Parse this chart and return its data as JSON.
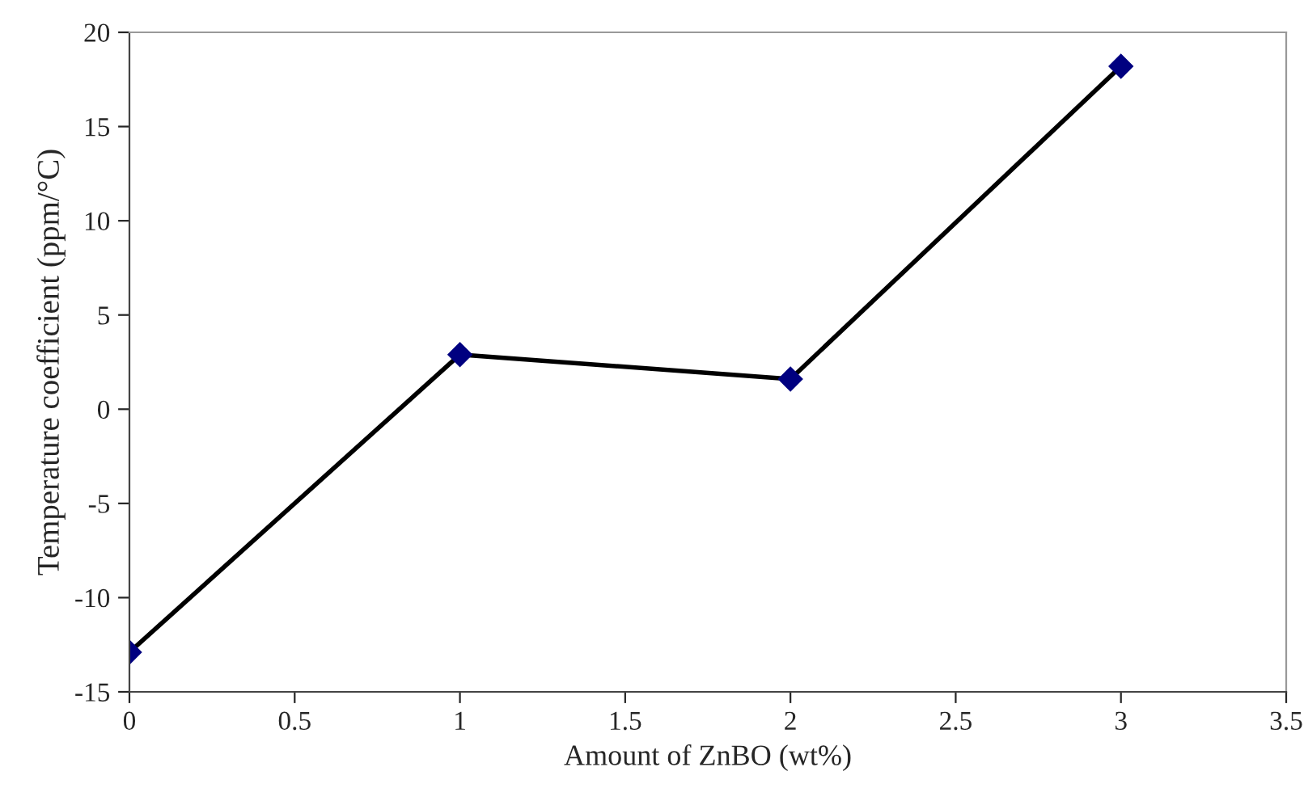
{
  "chart_data": {
    "type": "line",
    "xlabel": "Amount of ZnBO (wt%)",
    "ylabel": "Temperature coefficient (ppm/°C)",
    "x": [
      0,
      1,
      2,
      3
    ],
    "series": [
      {
        "color": "#000080",
        "values": [
          -12.9,
          2.9,
          1.6,
          18.2
        ]
      }
    ],
    "xlim": [
      0,
      3.5
    ],
    "xticks": [
      0,
      0.5,
      1,
      1.5,
      2,
      2.5,
      3,
      3.5
    ],
    "ylim": [
      -15,
      20
    ],
    "yticks": [
      -15,
      -10,
      -5,
      0,
      5,
      10,
      15,
      20
    ],
    "grid": false,
    "legend": false,
    "marker": "diamond",
    "line_style": "solid"
  }
}
